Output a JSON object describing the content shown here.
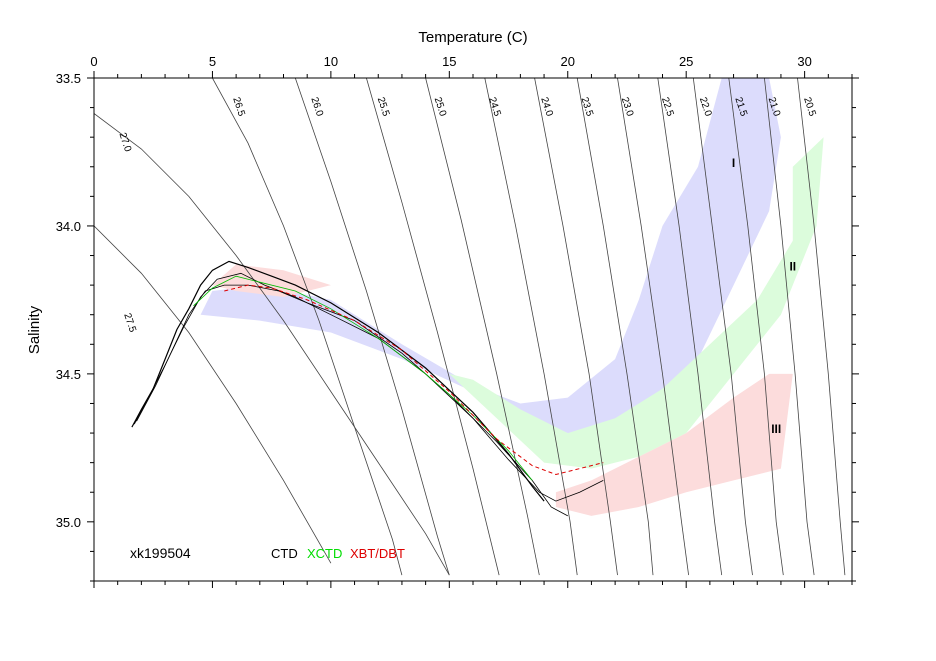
{
  "chart_data": {
    "type": "scatter",
    "xlabel": "Temperature (C)",
    "ylabel": "Salinity",
    "xlim": [
      0,
      32
    ],
    "ylim": [
      35.2,
      33.5
    ],
    "x_ticks": [
      0,
      5,
      10,
      15,
      20,
      25,
      30
    ],
    "y_ticks": [
      "33.5",
      "34.0",
      "34.5",
      "35.0"
    ],
    "y_tick_values": [
      33.5,
      34.0,
      34.5,
      35.0
    ],
    "station_label": "xk199504",
    "legend": [
      {
        "label": "CTD",
        "color": "#000000"
      },
      {
        "label": "XCTD",
        "color": "#00dd00"
      },
      {
        "label": "XBT/DBT",
        "color": "#dd0000"
      }
    ],
    "isopycnals": [
      {
        "label": "27.5",
        "label_x": 1.4,
        "label_y": 34.33,
        "points": [
          [
            0,
            34.0
          ],
          [
            2,
            34.16
          ],
          [
            4,
            34.36
          ],
          [
            6,
            34.6
          ],
          [
            8,
            34.86
          ],
          [
            10,
            35.14
          ]
        ]
      },
      {
        "label": "27.0",
        "label_x": 1.2,
        "label_y": 33.72,
        "points": [
          [
            0,
            33.62
          ],
          [
            2,
            33.74
          ],
          [
            4,
            33.9
          ],
          [
            6,
            34.1
          ],
          [
            8,
            34.32
          ],
          [
            10,
            34.56
          ],
          [
            12,
            34.8
          ],
          [
            14,
            35.04
          ],
          [
            15,
            35.18
          ]
        ]
      },
      {
        "label": "26.5",
        "label_x": 6.0,
        "label_y": 33.6,
        "points": [
          [
            5,
            33.5
          ],
          [
            6.5,
            33.72
          ],
          [
            8,
            34.0
          ],
          [
            9.5,
            34.32
          ],
          [
            11,
            34.68
          ],
          [
            12.6,
            35.06
          ],
          [
            13,
            35.18
          ]
        ]
      },
      {
        "label": "26.0",
        "label_x": 9.3,
        "label_y": 33.6,
        "points": [
          [
            8.5,
            33.5
          ],
          [
            10,
            33.85
          ],
          [
            11.5,
            34.22
          ],
          [
            13,
            34.62
          ],
          [
            14.5,
            35.05
          ],
          [
            15,
            35.18
          ]
        ]
      },
      {
        "label": "25.5",
        "label_x": 12.1,
        "label_y": 33.6,
        "points": [
          [
            11.5,
            33.5
          ],
          [
            13,
            33.92
          ],
          [
            14.5,
            34.36
          ],
          [
            16,
            34.82
          ],
          [
            17.1,
            35.18
          ]
        ]
      },
      {
        "label": "25.0",
        "label_x": 14.5,
        "label_y": 33.6,
        "points": [
          [
            14,
            33.5
          ],
          [
            15.5,
            33.98
          ],
          [
            17,
            34.5
          ],
          [
            18.3,
            34.98
          ],
          [
            18.8,
            35.18
          ]
        ]
      },
      {
        "label": "24.5",
        "label_x": 16.8,
        "label_y": 33.6,
        "points": [
          [
            16.5,
            33.5
          ],
          [
            17.8,
            34.0
          ],
          [
            19,
            34.5
          ],
          [
            20.1,
            35.0
          ],
          [
            20.4,
            35.18
          ]
        ]
      },
      {
        "label": "24.0",
        "label_x": 19.0,
        "label_y": 33.6,
        "points": [
          [
            18.6,
            33.5
          ],
          [
            19.8,
            34.0
          ],
          [
            20.9,
            34.5
          ],
          [
            21.8,
            35.0
          ],
          [
            22.1,
            35.18
          ]
        ]
      },
      {
        "label": "23.5",
        "label_x": 20.7,
        "label_y": 33.6,
        "points": [
          [
            20.4,
            33.5
          ],
          [
            21.5,
            34.0
          ],
          [
            22.5,
            34.5
          ],
          [
            23.4,
            35.0
          ],
          [
            23.6,
            35.18
          ]
        ]
      },
      {
        "label": "23.0",
        "label_x": 22.4,
        "label_y": 33.6,
        "points": [
          [
            22.1,
            33.5
          ],
          [
            23.1,
            34.0
          ],
          [
            24,
            34.5
          ],
          [
            24.8,
            35.0
          ],
          [
            25.1,
            35.18
          ]
        ]
      },
      {
        "label": "22.5",
        "label_x": 24.1,
        "label_y": 33.6,
        "points": [
          [
            23.8,
            33.5
          ],
          [
            24.7,
            34.0
          ],
          [
            25.5,
            34.5
          ],
          [
            26.2,
            35.0
          ],
          [
            26.5,
            35.18
          ]
        ]
      },
      {
        "label": "22.0",
        "label_x": 25.7,
        "label_y": 33.6,
        "points": [
          [
            25.3,
            33.5
          ],
          [
            26.1,
            34.0
          ],
          [
            26.9,
            34.5
          ],
          [
            27.5,
            35.0
          ],
          [
            27.8,
            35.18
          ]
        ]
      },
      {
        "label": "21.5",
        "label_x": 27.2,
        "label_y": 33.6,
        "points": [
          [
            26.8,
            33.5
          ],
          [
            27.6,
            34.0
          ],
          [
            28.3,
            34.5
          ],
          [
            28.8,
            35.0
          ],
          [
            29.1,
            35.18
          ]
        ]
      },
      {
        "label": "21.0",
        "label_x": 28.6,
        "label_y": 33.6,
        "points": [
          [
            28.3,
            33.5
          ],
          [
            29.0,
            34.0
          ],
          [
            29.6,
            34.5
          ],
          [
            30.1,
            35.0
          ],
          [
            30.4,
            35.18
          ]
        ]
      },
      {
        "label": "20.5",
        "label_x": 30.1,
        "label_y": 33.6,
        "points": [
          [
            29.7,
            33.5
          ],
          [
            30.4,
            34.0
          ],
          [
            31.0,
            34.5
          ],
          [
            31.5,
            35.0
          ],
          [
            31.7,
            35.18
          ]
        ]
      }
    ],
    "regions": [
      {
        "label": "I",
        "color": "#dcdcfc",
        "label_x": 27,
        "label_y": 33.8,
        "points": [
          [
            4.5,
            34.3
          ],
          [
            7,
            34.32
          ],
          [
            10,
            34.36
          ],
          [
            13,
            34.45
          ],
          [
            16,
            34.56
          ],
          [
            18,
            34.64
          ],
          [
            20,
            34.7
          ],
          [
            22,
            34.72
          ],
          [
            24,
            34.62
          ],
          [
            25.5,
            34.45
          ],
          [
            27,
            34.2
          ],
          [
            28.5,
            33.95
          ],
          [
            29,
            33.7
          ],
          [
            28.5,
            33.5
          ],
          [
            26.5,
            33.5
          ],
          [
            25.5,
            33.8
          ],
          [
            24,
            34.0
          ],
          [
            23,
            34.25
          ],
          [
            22,
            34.45
          ],
          [
            20,
            34.58
          ],
          [
            18,
            34.6
          ],
          [
            16,
            34.54
          ],
          [
            13,
            34.4
          ],
          [
            10,
            34.25
          ],
          [
            7,
            34.2
          ],
          [
            5,
            34.22
          ]
        ]
      },
      {
        "label": "II",
        "color": "#dcfcdc",
        "label_x": 29.5,
        "label_y": 34.15,
        "points": [
          [
            15,
            34.5
          ],
          [
            17,
            34.65
          ],
          [
            19,
            34.8
          ],
          [
            21,
            34.82
          ],
          [
            23,
            34.78
          ],
          [
            25,
            34.7
          ],
          [
            27,
            34.5
          ],
          [
            29,
            34.3
          ],
          [
            30.5,
            34.0
          ],
          [
            30.8,
            33.7
          ],
          [
            29.5,
            33.8
          ],
          [
            29.5,
            34.05
          ],
          [
            28,
            34.25
          ],
          [
            26,
            34.4
          ],
          [
            24,
            34.55
          ],
          [
            22,
            34.65
          ],
          [
            20,
            34.7
          ],
          [
            18,
            34.62
          ],
          [
            16,
            34.52
          ]
        ]
      },
      {
        "label": "III",
        "color": "#fcdcdc",
        "label_x": 28.8,
        "label_y": 34.7,
        "points": [
          [
            6,
            34.13
          ],
          [
            8,
            34.15
          ],
          [
            10,
            34.2
          ],
          [
            8,
            34.24
          ],
          [
            6,
            34.22
          ],
          [
            5,
            34.2
          ]
        ]
      },
      {
        "label": "",
        "color": "#fcdcdc",
        "label_x": 0,
        "label_y": 0,
        "points": [
          [
            19.5,
            34.95
          ],
          [
            21,
            34.98
          ],
          [
            23,
            34.95
          ],
          [
            25,
            34.9
          ],
          [
            27,
            34.86
          ],
          [
            29,
            34.82
          ],
          [
            29.5,
            34.5
          ],
          [
            28.5,
            34.5
          ],
          [
            27,
            34.58
          ],
          [
            25,
            34.7
          ],
          [
            23,
            34.78
          ],
          [
            21,
            34.86
          ],
          [
            19.5,
            34.9
          ]
        ]
      }
    ],
    "series": [
      {
        "color": "#000000",
        "width": 1.2,
        "points": [
          [
            1.6,
            34.68
          ],
          [
            2,
            34.62
          ],
          [
            2.5,
            34.55
          ],
          [
            3,
            34.45
          ],
          [
            3.5,
            34.35
          ],
          [
            4,
            34.28
          ],
          [
            4.5,
            34.2
          ],
          [
            5,
            34.15
          ],
          [
            5.7,
            34.12
          ],
          [
            6.5,
            34.14
          ],
          [
            7.5,
            34.17
          ],
          [
            8.5,
            34.2
          ],
          [
            10,
            34.26
          ],
          [
            12,
            34.36
          ],
          [
            14,
            34.48
          ],
          [
            16,
            34.63
          ],
          [
            17.5,
            34.77
          ],
          [
            18.5,
            34.88
          ],
          [
            19,
            34.93
          ]
        ]
      },
      {
        "color": "#000000",
        "width": 0.8,
        "points": [
          [
            1.7,
            34.67
          ],
          [
            2.3,
            34.58
          ],
          [
            3,
            34.47
          ],
          [
            3.8,
            34.34
          ],
          [
            4.5,
            34.24
          ],
          [
            5.2,
            34.18
          ],
          [
            6.2,
            34.16
          ],
          [
            7.2,
            34.2
          ],
          [
            8.5,
            34.24
          ],
          [
            10,
            34.3
          ],
          [
            12,
            34.38
          ],
          [
            14,
            34.5
          ],
          [
            16,
            34.65
          ],
          [
            17.5,
            34.79
          ],
          [
            18.8,
            34.9
          ],
          [
            19.5,
            34.93
          ],
          [
            20.5,
            34.9
          ],
          [
            21.5,
            34.86
          ]
        ]
      },
      {
        "color": "#000000",
        "width": 0.8,
        "points": [
          [
            1.8,
            34.66
          ],
          [
            2.6,
            34.54
          ],
          [
            3.3,
            34.42
          ],
          [
            4,
            34.3
          ],
          [
            4.7,
            34.22
          ],
          [
            5.5,
            34.2
          ],
          [
            6.5,
            34.2
          ],
          [
            7.8,
            34.22
          ],
          [
            9,
            34.26
          ],
          [
            11,
            34.32
          ],
          [
            13,
            34.43
          ],
          [
            15,
            34.57
          ],
          [
            17,
            34.73
          ],
          [
            18.5,
            34.86
          ],
          [
            19.3,
            34.95
          ],
          [
            20,
            34.98
          ]
        ]
      },
      {
        "color": "#00bb00",
        "width": 0.8,
        "points": [
          [
            4.2,
            34.27
          ],
          [
            5,
            34.21
          ],
          [
            6,
            34.17
          ],
          [
            7,
            34.19
          ],
          [
            8.5,
            34.22
          ],
          [
            10,
            34.28
          ],
          [
            12,
            34.38
          ],
          [
            14,
            34.5
          ],
          [
            16,
            34.64
          ],
          [
            17.5,
            34.76
          ],
          [
            18.5,
            34.86
          ]
        ]
      },
      {
        "color": "#dd0000",
        "width": 1.0,
        "dashed": true,
        "points": [
          [
            5.5,
            34.22
          ],
          [
            6.5,
            34.2
          ],
          [
            7.5,
            34.21
          ],
          [
            9,
            34.25
          ],
          [
            11,
            34.32
          ],
          [
            13,
            34.42
          ],
          [
            15,
            34.56
          ],
          [
            17,
            34.72
          ],
          [
            18.5,
            34.81
          ],
          [
            19.5,
            34.84
          ],
          [
            20.5,
            34.82
          ],
          [
            21.5,
            34.8
          ]
        ]
      }
    ]
  }
}
